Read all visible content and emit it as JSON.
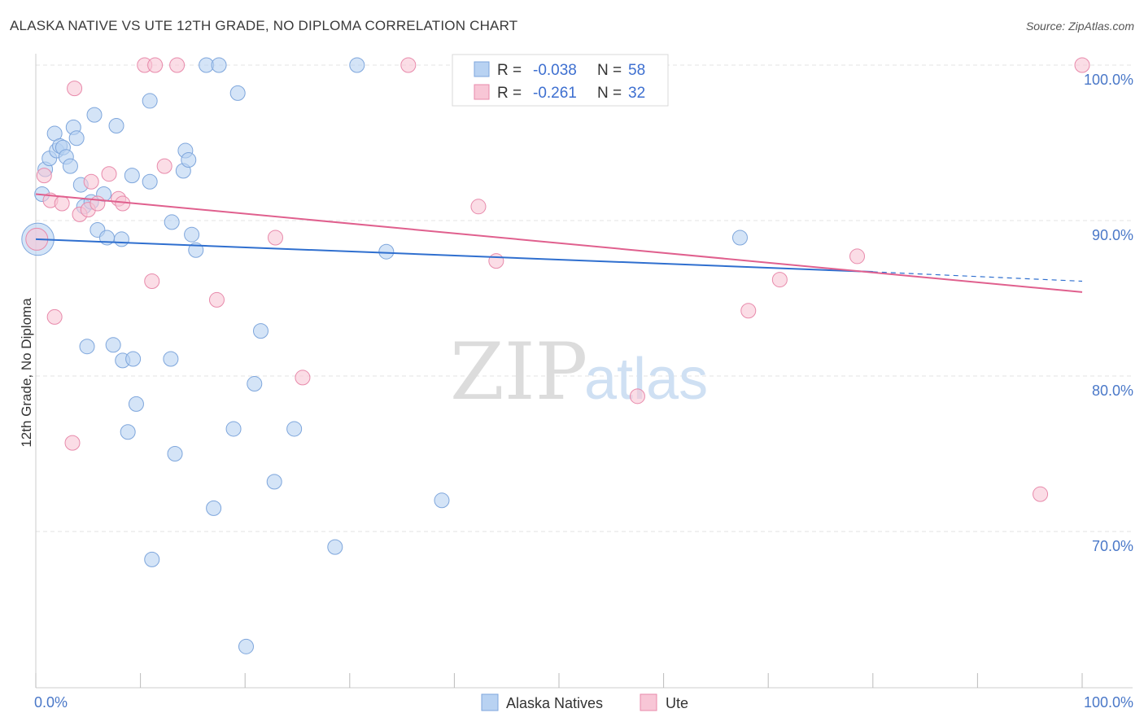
{
  "title": "ALASKA NATIVE VS UTE 12TH GRADE, NO DIPLOMA CORRELATION CHART",
  "source": "Source: ZipAtlas.com",
  "watermark": {
    "part1": "ZIP",
    "part2": "atlas"
  },
  "legend": {
    "r_label": "R =",
    "n_label": "N =",
    "rows": [
      {
        "series": "Alaska Natives",
        "r": "-0.038",
        "n": "58"
      },
      {
        "series": "Ute",
        "r": "-0.261",
        "n": "32"
      }
    ]
  },
  "colors": {
    "alaska_fill": "#b8d2f2",
    "alaska_stroke": "#7ea6dc",
    "alaska_line": "#2f6fcf",
    "ute_fill": "#f8c6d6",
    "ute_stroke": "#e88aab",
    "ute_line": "#e0608e",
    "grid": "#e3e3e3",
    "tick_text": "#4a78c8"
  },
  "chart_data": {
    "type": "scatter",
    "title": "ALASKA NATIVE VS UTE 12TH GRADE, NO DIPLOMA CORRELATION CHART",
    "xlabel": "",
    "ylabel": "12th Grade, No Diploma",
    "xlim": [
      0,
      100
    ],
    "ylim": [
      60,
      101.5
    ],
    "x_tick_labels": [
      "0.0%",
      "100.0%"
    ],
    "y_ticks": [
      {
        "value": 100,
        "label": "100.0%"
      },
      {
        "value": 90,
        "label": "90.0%"
      },
      {
        "value": 80,
        "label": "80.0%"
      },
      {
        "value": 70,
        "label": "70.0%"
      }
    ],
    "grid": true,
    "legend_position": "top-center",
    "series": [
      {
        "name": "Alaska Natives",
        "r": -0.038,
        "n": 58,
        "trend": {
          "x0": 0,
          "y0": 88.8,
          "x1": 80,
          "y1": 86.7,
          "dash_x1": 100,
          "dash_y1": 86.1
        },
        "points": [
          [
            0.2,
            88.8,
            2.2
          ],
          [
            0.6,
            91.7,
            1
          ],
          [
            0.9,
            93.3,
            1
          ],
          [
            1.3,
            94.0,
            1
          ],
          [
            1.8,
            95.6,
            1
          ],
          [
            2.0,
            94.5,
            1
          ],
          [
            2.3,
            94.8,
            1
          ],
          [
            2.6,
            94.7,
            1
          ],
          [
            2.9,
            94.1,
            1
          ],
          [
            3.3,
            93.5,
            1
          ],
          [
            3.6,
            96.0,
            1
          ],
          [
            3.9,
            95.3,
            1
          ],
          [
            4.3,
            92.3,
            1
          ],
          [
            4.6,
            90.9,
            1
          ],
          [
            5.3,
            91.2,
            1
          ],
          [
            5.6,
            96.8,
            1
          ],
          [
            5.9,
            89.4,
            1
          ],
          [
            6.5,
            91.7,
            1
          ],
          [
            6.8,
            88.9,
            1
          ],
          [
            7.7,
            96.1,
            1
          ],
          [
            8.2,
            88.8,
            1
          ],
          [
            9.2,
            92.9,
            1
          ],
          [
            10.9,
            92.5,
            1
          ],
          [
            10.9,
            97.7,
            1
          ],
          [
            13.0,
            89.9,
            1
          ],
          [
            14.1,
            93.2,
            1
          ],
          [
            14.3,
            94.5,
            1
          ],
          [
            14.6,
            93.9,
            1
          ],
          [
            14.9,
            89.1,
            1
          ],
          [
            15.3,
            88.1,
            1
          ],
          [
            16.3,
            100.0,
            1
          ],
          [
            17.5,
            100.0,
            1
          ],
          [
            19.3,
            98.2,
            1
          ],
          [
            30.7,
            100.0,
            1
          ],
          [
            33.5,
            88.0,
            1
          ],
          [
            67.3,
            88.9,
            1
          ],
          [
            4.9,
            81.9,
            1
          ],
          [
            7.4,
            82.0,
            1
          ],
          [
            8.3,
            81.0,
            1
          ],
          [
            9.3,
            81.1,
            1
          ],
          [
            9.6,
            78.2,
            1
          ],
          [
            8.8,
            76.4,
            1
          ],
          [
            12.9,
            81.1,
            1
          ],
          [
            13.3,
            75.0,
            1
          ],
          [
            21.5,
            82.9,
            1
          ],
          [
            20.9,
            79.5,
            1
          ],
          [
            18.9,
            76.6,
            1
          ],
          [
            24.7,
            76.6,
            1
          ],
          [
            22.8,
            73.2,
            1
          ],
          [
            17.0,
            71.5,
            1
          ],
          [
            11.1,
            68.2,
            1
          ],
          [
            28.6,
            69.0,
            1
          ],
          [
            38.8,
            72.0,
            1
          ],
          [
            20.1,
            62.6,
            1
          ],
          [
            41.0,
            100.0,
            1
          ],
          [
            44.5,
            100.0,
            1
          ],
          [
            45.7,
            100.0,
            1
          ],
          [
            46.0,
            100.0,
            1
          ]
        ]
      },
      {
        "name": "Ute",
        "r": -0.261,
        "n": 32,
        "trend": {
          "x0": 0,
          "y0": 91.7,
          "x1": 100,
          "y1": 85.4
        },
        "points": [
          [
            0.1,
            88.8,
            1.5
          ],
          [
            0.8,
            92.9,
            1
          ],
          [
            1.4,
            91.3,
            1
          ],
          [
            1.8,
            83.8,
            1
          ],
          [
            2.5,
            91.1,
            1
          ],
          [
            3.7,
            98.5,
            1
          ],
          [
            3.5,
            75.7,
            1
          ],
          [
            4.2,
            90.4,
            1
          ],
          [
            5.0,
            90.7,
            1
          ],
          [
            5.3,
            92.5,
            1
          ],
          [
            5.9,
            91.1,
            1
          ],
          [
            7.0,
            93.0,
            1
          ],
          [
            7.9,
            91.4,
            1
          ],
          [
            8.3,
            91.1,
            1
          ],
          [
            10.4,
            100.0,
            1
          ],
          [
            11.1,
            86.1,
            1
          ],
          [
            11.4,
            100.0,
            1
          ],
          [
            12.3,
            93.5,
            1
          ],
          [
            13.5,
            100.0,
            1
          ],
          [
            17.3,
            84.9,
            1
          ],
          [
            22.9,
            88.9,
            1
          ],
          [
            25.5,
            79.9,
            1
          ],
          [
            35.6,
            100.0,
            1
          ],
          [
            42.3,
            90.9,
            1
          ],
          [
            44.0,
            87.4,
            1
          ],
          [
            53.2,
            100.0,
            1
          ],
          [
            57.5,
            78.7,
            1
          ],
          [
            68.1,
            84.2,
            1
          ],
          [
            71.1,
            86.2,
            1
          ],
          [
            78.5,
            87.7,
            1
          ],
          [
            96.0,
            72.4,
            1
          ],
          [
            100.0,
            100.0,
            1
          ]
        ]
      }
    ]
  }
}
